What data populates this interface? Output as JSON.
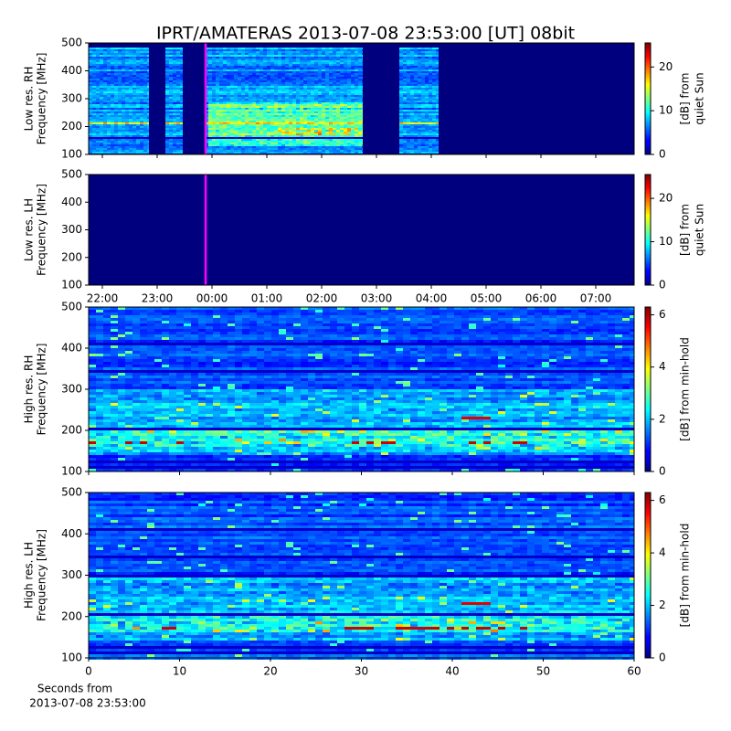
{
  "title": "IPRT/AMATERAS 2013-07-08 23:53:00 [UT]   08bit",
  "chart_data": [
    {
      "type": "heatmap",
      "ylabel": [
        "Low res. RH",
        "Frequency [MHz]"
      ],
      "ylim": [
        100,
        500
      ],
      "yticks": [
        100,
        200,
        300,
        400,
        500
      ],
      "xlim": [
        -2.25,
        7.7
      ],
      "xticks": [
        -2,
        -1,
        0,
        1,
        2,
        3,
        4,
        5,
        6,
        7
      ],
      "markers": [
        {
          "value": -0.12,
          "color": "#ff00ff"
        }
      ],
      "clim": [
        0,
        25.5
      ],
      "cticks": [
        0,
        10,
        20
      ],
      "clabel": [
        "[dB] from",
        "quiet Sun"
      ],
      "texture": "lowres"
    },
    {
      "type": "heatmap",
      "ylabel": [
        "Low res. LH",
        "Frequency [MHz]"
      ],
      "ylim": [
        100,
        500
      ],
      "yticks": [
        100,
        200,
        300,
        400,
        500
      ],
      "xlim": [
        -2.25,
        7.7
      ],
      "xticks": [
        {
          "value": -2,
          "label": "22:00"
        },
        {
          "value": -1,
          "label": "23:00"
        },
        {
          "value": 0,
          "label": "00:00"
        },
        {
          "value": 1,
          "label": "01:00"
        },
        {
          "value": 2,
          "label": "02:00"
        },
        {
          "value": 3,
          "label": "03:00"
        },
        {
          "value": 4,
          "label": "04:00"
        },
        {
          "value": 5,
          "label": "05:00"
        },
        {
          "value": 6,
          "label": "06:00"
        },
        {
          "value": 7,
          "label": "07:00"
        }
      ],
      "markers": [
        {
          "value": -0.12,
          "color": "#ff00ff"
        }
      ],
      "clim": [
        0,
        25.5
      ],
      "cticks": [
        0,
        10,
        20
      ],
      "clabel": [
        "[dB] from",
        "quiet Sun"
      ],
      "texture": "empty"
    },
    {
      "type": "heatmap",
      "ylabel": [
        "High res. RH",
        "Frequency [MHz]"
      ],
      "ylim": [
        100,
        500
      ],
      "yticks": [
        100,
        200,
        300,
        400,
        500
      ],
      "xlim": [
        0,
        60
      ],
      "xticks": [
        0,
        10,
        20,
        30,
        40,
        50,
        60
      ],
      "clim": [
        0,
        6.3
      ],
      "cticks": [
        0,
        2,
        4,
        6
      ],
      "clabel": [
        "[dB] from min-hold"
      ],
      "texture": "hires"
    },
    {
      "type": "heatmap",
      "ylabel": [
        "High res. LH",
        "Frequency [MHz]"
      ],
      "ylim": [
        100,
        500
      ],
      "yticks": [
        100,
        200,
        300,
        400,
        500
      ],
      "xlim": [
        0,
        60
      ],
      "xticks": [
        0,
        10,
        20,
        30,
        40,
        50,
        60
      ],
      "xlabel": [
        "Seconds from",
        "2013-07-08 23:53:00"
      ],
      "clim": [
        0,
        6.3
      ],
      "cticks": [
        0,
        2,
        4,
        6
      ],
      "clabel": [
        "[dB] from min-hold"
      ],
      "texture": "hires"
    }
  ]
}
